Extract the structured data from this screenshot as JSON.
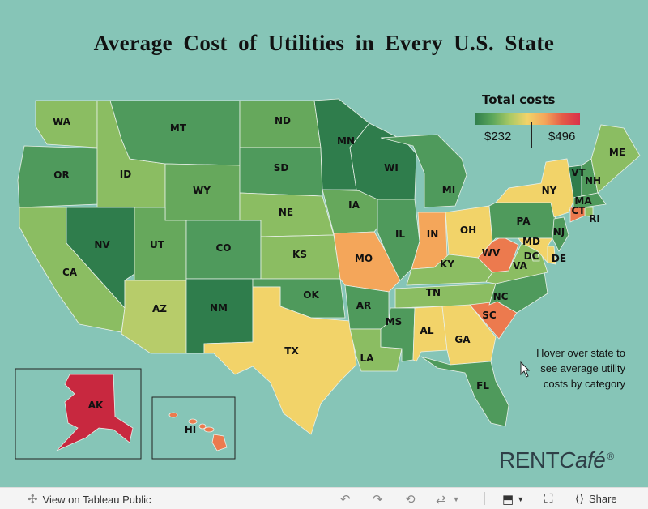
{
  "title": "Average Cost of Utilities in Every U.S. State",
  "legend": {
    "title": "Total costs",
    "min": "$232",
    "max": "$496"
  },
  "note": [
    "Hover over state to",
    "see average utility",
    "costs by category"
  ],
  "brand": {
    "prefix": "RENT",
    "suffix": "Café",
    "mark": "®"
  },
  "toolbar": {
    "view_label": "View on Tableau Public",
    "share_label": "Share"
  },
  "colors": {
    "background": "#86c5b7",
    "dark_green": "#2f7d4c",
    "mid_green": "#4f9a5c",
    "green": "#66a85c",
    "light_green": "#8bbd62",
    "yellow_green": "#b7cc6a",
    "yellow": "#f2d369",
    "orange": "#f4a65a",
    "red_orange": "#ec7a4e",
    "red": "#c8283f"
  },
  "states": [
    {
      "abbr": "WA",
      "color": "light_green"
    },
    {
      "abbr": "OR",
      "color": "mid_green"
    },
    {
      "abbr": "CA",
      "color": "light_green"
    },
    {
      "abbr": "ID",
      "color": "light_green"
    },
    {
      "abbr": "NV",
      "color": "dark_green"
    },
    {
      "abbr": "MT",
      "color": "mid_green"
    },
    {
      "abbr": "WY",
      "color": "green"
    },
    {
      "abbr": "UT",
      "color": "green"
    },
    {
      "abbr": "AZ",
      "color": "yellow_green"
    },
    {
      "abbr": "CO",
      "color": "mid_green"
    },
    {
      "abbr": "NM",
      "color": "dark_green"
    },
    {
      "abbr": "ND",
      "color": "green"
    },
    {
      "abbr": "SD",
      "color": "mid_green"
    },
    {
      "abbr": "NE",
      "color": "light_green"
    },
    {
      "abbr": "KS",
      "color": "light_green"
    },
    {
      "abbr": "OK",
      "color": "mid_green"
    },
    {
      "abbr": "TX",
      "color": "yellow"
    },
    {
      "abbr": "MN",
      "color": "dark_green"
    },
    {
      "abbr": "IA",
      "color": "green"
    },
    {
      "abbr": "MO",
      "color": "orange"
    },
    {
      "abbr": "AR",
      "color": "mid_green"
    },
    {
      "abbr": "LA",
      "color": "light_green"
    },
    {
      "abbr": "WI",
      "color": "dark_green"
    },
    {
      "abbr": "IL",
      "color": "mid_green"
    },
    {
      "abbr": "MI",
      "color": "mid_green"
    },
    {
      "abbr": "IN",
      "color": "orange"
    },
    {
      "abbr": "OH",
      "color": "yellow"
    },
    {
      "abbr": "KY",
      "color": "light_green"
    },
    {
      "abbr": "TN",
      "color": "light_green"
    },
    {
      "abbr": "MS",
      "color": "mid_green"
    },
    {
      "abbr": "AL",
      "color": "yellow"
    },
    {
      "abbr": "GA",
      "color": "yellow"
    },
    {
      "abbr": "FL",
      "color": "mid_green"
    },
    {
      "abbr": "SC",
      "color": "red_orange"
    },
    {
      "abbr": "NC",
      "color": "mid_green"
    },
    {
      "abbr": "VA",
      "color": "light_green"
    },
    {
      "abbr": "WV",
      "color": "red_orange"
    },
    {
      "abbr": "PA",
      "color": "mid_green"
    },
    {
      "abbr": "NY",
      "color": "yellow"
    },
    {
      "abbr": "VT",
      "color": "dark_green"
    },
    {
      "abbr": "NH",
      "color": "mid_green"
    },
    {
      "abbr": "ME",
      "color": "light_green"
    },
    {
      "abbr": "MA",
      "color": "mid_green"
    },
    {
      "abbr": "RI",
      "color": "light_green"
    },
    {
      "abbr": "CT",
      "color": "red_orange"
    },
    {
      "abbr": "NJ",
      "color": "mid_green"
    },
    {
      "abbr": "DE",
      "color": "yellow"
    },
    {
      "abbr": "MD",
      "color": "yellow"
    },
    {
      "abbr": "DC",
      "color": "light_green"
    },
    {
      "abbr": "AK",
      "color": "red"
    },
    {
      "abbr": "HI",
      "color": "red_orange"
    }
  ]
}
